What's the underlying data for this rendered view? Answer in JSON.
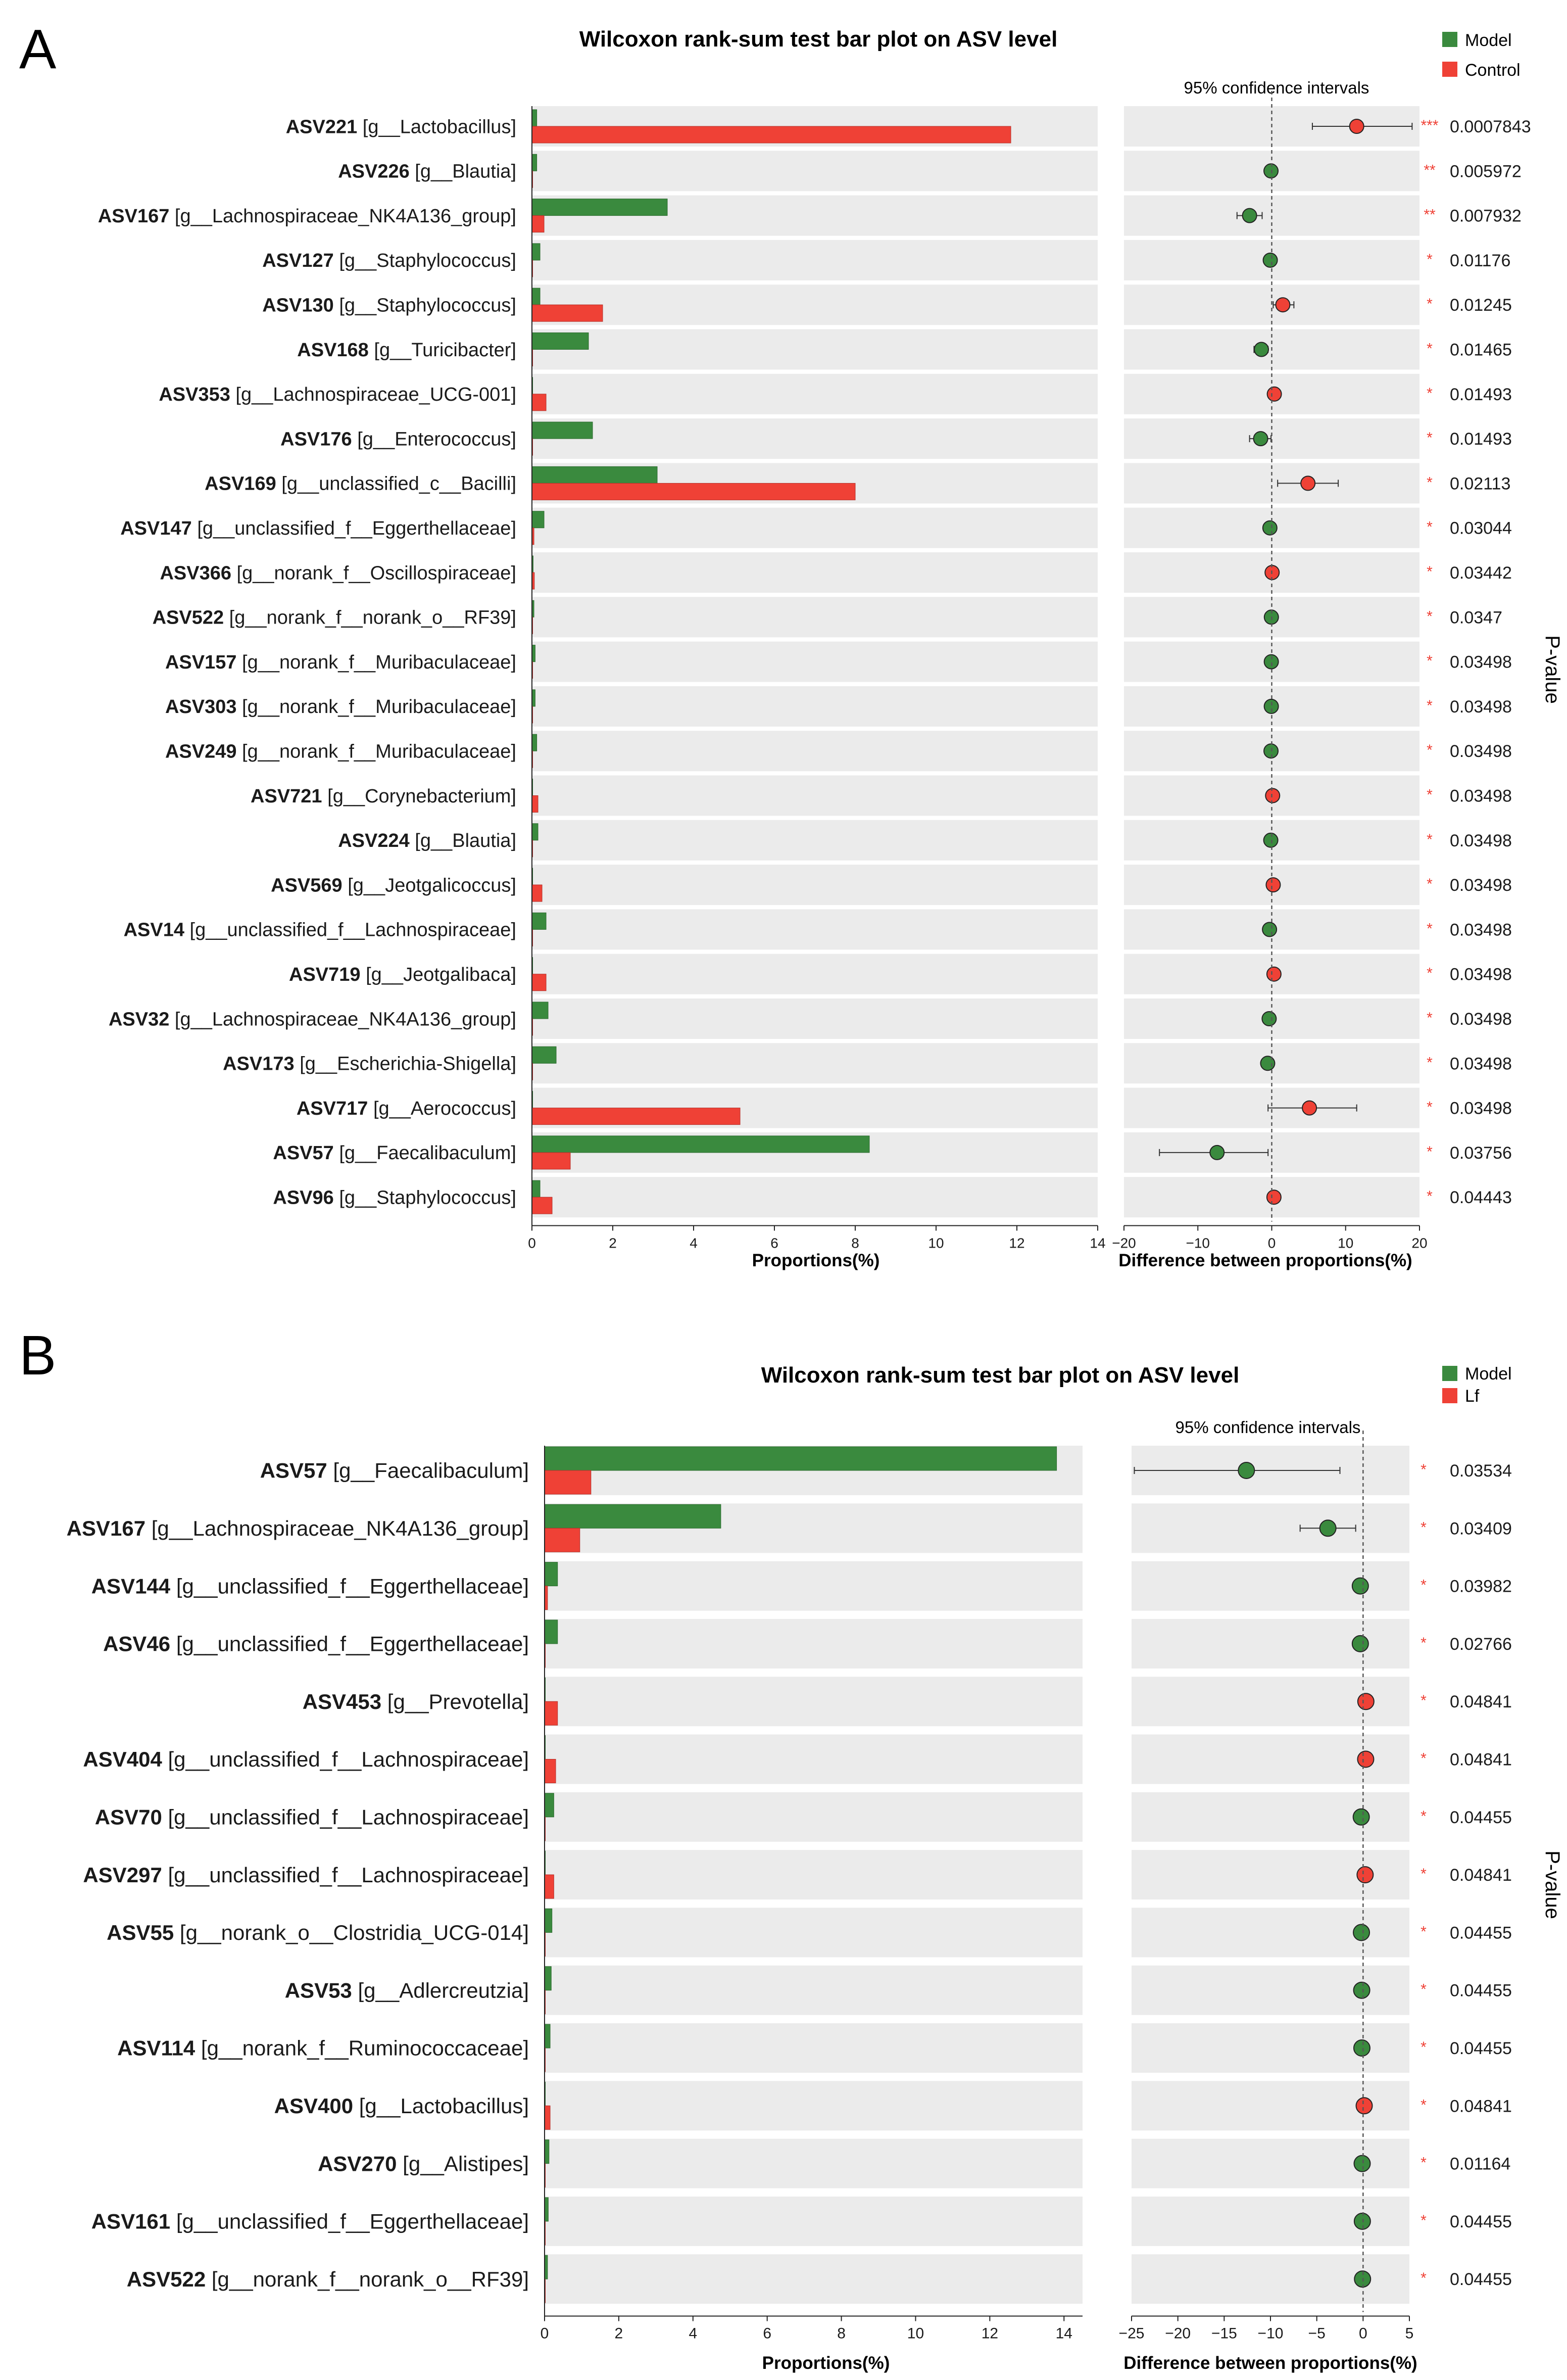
{
  "colors": {
    "model": "#3a8a3e",
    "control": "#ef4136",
    "lf": "#ef4136",
    "panel_bg": "#ebebeb",
    "sig_star": "#ef4136",
    "text": "#1a1a1a"
  },
  "chart_data": [
    {
      "type": "bar",
      "panel_label": "A",
      "title": "Wilcoxon rank-sum test bar plot on ASV level",
      "legend": [
        {
          "name": "Model",
          "color_key": "model"
        },
        {
          "name": "Control",
          "color_key": "control"
        }
      ],
      "ci_title": "95% confidence intervals",
      "xlabel": "Proportions(%)",
      "ci_xlabel": "Difference between proportions(%)",
      "p_axis_label": "P-value",
      "xlim": [
        0,
        14
      ],
      "xticks": [
        0,
        2,
        4,
        6,
        8,
        10,
        12,
        14
      ],
      "ci_xlim": [
        -20,
        20
      ],
      "ci_xticks": [
        -20,
        -10,
        0,
        10,
        20
      ],
      "rows": [
        {
          "asv": "ASV221",
          "taxon": " [g__Lactobacillus]",
          "model": 0.12,
          "other": 11.85,
          "diff": 11.5,
          "lo": 5.5,
          "hi": 19.0,
          "stars": "***",
          "p": "0.0007843"
        },
        {
          "asv": "ASV226",
          "taxon": " [g__Blautia]",
          "model": 0.12,
          "other": 0.0,
          "diff": -0.1,
          "lo": -0.3,
          "hi": 0.1,
          "stars": "**",
          "p": "0.005972"
        },
        {
          "asv": "ASV167",
          "taxon": " [g__Lachnospiraceae_NK4A136_group]",
          "model": 3.35,
          "other": 0.3,
          "diff": -3.0,
          "lo": -4.7,
          "hi": -1.3,
          "stars": "**",
          "p": "0.007932"
        },
        {
          "asv": "ASV127",
          "taxon": " [g__Staphylococcus]",
          "model": 0.2,
          "other": 0.0,
          "diff": -0.2,
          "lo": -0.4,
          "hi": 0.0,
          "stars": "*",
          "p": "0.01176"
        },
        {
          "asv": "ASV130",
          "taxon": " [g__Staphylococcus]",
          "model": 0.2,
          "other": 1.75,
          "diff": 1.5,
          "lo": 0.2,
          "hi": 3.0,
          "stars": "*",
          "p": "0.01245"
        },
        {
          "asv": "ASV168",
          "taxon": " [g__Turicibacter]",
          "model": 1.4,
          "other": 0.0,
          "diff": -1.4,
          "lo": -2.4,
          "hi": -0.5,
          "stars": "*",
          "p": "0.01465"
        },
        {
          "asv": "ASV353",
          "taxon": " [g__Lachnospiraceae_UCG-001]",
          "model": 0.0,
          "other": 0.35,
          "diff": 0.35,
          "lo": 0.1,
          "hi": 0.6,
          "stars": "*",
          "p": "0.01493"
        },
        {
          "asv": "ASV176",
          "taxon": " [g__Enterococcus]",
          "model": 1.5,
          "other": 0.0,
          "diff": -1.5,
          "lo": -3.0,
          "hi": -0.1,
          "stars": "*",
          "p": "0.01493"
        },
        {
          "asv": "ASV169",
          "taxon": " [g__unclassified_c__Bacilli]",
          "model": 3.1,
          "other": 8.0,
          "diff": 4.9,
          "lo": 0.8,
          "hi": 9.0,
          "stars": "*",
          "p": "0.02113"
        },
        {
          "asv": "ASV147",
          "taxon": " [g__unclassified_f__Eggerthellaceae]",
          "model": 0.3,
          "other": 0.05,
          "diff": -0.25,
          "lo": -0.5,
          "hi": 0.0,
          "stars": "*",
          "p": "0.03044"
        },
        {
          "asv": "ASV366",
          "taxon": " [g__norank_f__Oscillospiraceae]",
          "model": 0.03,
          "other": 0.06,
          "diff": 0.05,
          "lo": 0.0,
          "hi": 0.1,
          "stars": "*",
          "p": "0.03442"
        },
        {
          "asv": "ASV522",
          "taxon": " [g__norank_f__norank_o__RF39]",
          "model": 0.05,
          "other": 0.0,
          "diff": -0.05,
          "lo": -0.1,
          "hi": 0.0,
          "stars": "*",
          "p": "0.0347"
        },
        {
          "asv": "ASV157",
          "taxon": " [g__norank_f__Muribaculaceae]",
          "model": 0.08,
          "other": 0.0,
          "diff": -0.06,
          "lo": -0.1,
          "hi": 0.0,
          "stars": "*",
          "p": "0.03498"
        },
        {
          "asv": "ASV303",
          "taxon": " [g__norank_f__Muribaculaceae]",
          "model": 0.08,
          "other": 0.0,
          "diff": -0.06,
          "lo": -0.1,
          "hi": 0.0,
          "stars": "*",
          "p": "0.03498"
        },
        {
          "asv": "ASV249",
          "taxon": " [g__norank_f__Muribaculaceae]",
          "model": 0.12,
          "other": 0.0,
          "diff": -0.1,
          "lo": -0.2,
          "hi": 0.0,
          "stars": "*",
          "p": "0.03498"
        },
        {
          "asv": "ASV721",
          "taxon": " [g__Corynebacterium]",
          "model": 0.0,
          "other": 0.15,
          "diff": 0.12,
          "lo": 0.0,
          "hi": 0.25,
          "stars": "*",
          "p": "0.03498"
        },
        {
          "asv": "ASV224",
          "taxon": " [g__Blautia]",
          "model": 0.15,
          "other": 0.0,
          "diff": -0.13,
          "lo": -0.25,
          "hi": 0.0,
          "stars": "*",
          "p": "0.03498"
        },
        {
          "asv": "ASV569",
          "taxon": " [g__Jeotgalicoccus]",
          "model": 0.0,
          "other": 0.25,
          "diff": 0.2,
          "lo": 0.05,
          "hi": 0.4,
          "stars": "*",
          "p": "0.03498"
        },
        {
          "asv": "ASV14",
          "taxon": " [g__unclassified_f__Lachnospiraceae]",
          "model": 0.35,
          "other": 0.0,
          "diff": -0.3,
          "lo": -0.6,
          "hi": 0.0,
          "stars": "*",
          "p": "0.03498"
        },
        {
          "asv": "ASV719",
          "taxon": " [g__Jeotgalibaca]",
          "model": 0.0,
          "other": 0.35,
          "diff": 0.3,
          "lo": 0.05,
          "hi": 0.6,
          "stars": "*",
          "p": "0.03498"
        },
        {
          "asv": "ASV32",
          "taxon": " [g__Lachnospiraceae_NK4A136_group]",
          "model": 0.4,
          "other": 0.0,
          "diff": -0.35,
          "lo": -0.7,
          "hi": 0.0,
          "stars": "*",
          "p": "0.03498"
        },
        {
          "asv": "ASV173",
          "taxon": " [g__Escherichia-Shigella]",
          "model": 0.6,
          "other": 0.0,
          "diff": -0.55,
          "lo": -1.0,
          "hi": -0.1,
          "stars": "*",
          "p": "0.03498"
        },
        {
          "asv": "ASV717",
          "taxon": " [g__Aerococcus]",
          "model": 0.0,
          "other": 5.15,
          "diff": 5.1,
          "lo": -0.5,
          "hi": 11.5,
          "stars": "*",
          "p": "0.03498"
        },
        {
          "asv": "ASV57",
          "taxon": " [g__Faecalibaculum]",
          "model": 8.35,
          "other": 0.95,
          "diff": -7.4,
          "lo": -15.2,
          "hi": -0.5,
          "stars": "*",
          "p": "0.03756"
        },
        {
          "asv": "ASV96",
          "taxon": " [g__Staphylococcus]",
          "model": 0.2,
          "other": 0.5,
          "diff": 0.3,
          "lo": 0.05,
          "hi": 0.6,
          "stars": "*",
          "p": "0.04443"
        }
      ]
    },
    {
      "type": "bar",
      "panel_label": "B",
      "title": "Wilcoxon rank-sum test bar plot on ASV level",
      "legend": [
        {
          "name": "Model",
          "color_key": "model"
        },
        {
          "name": "Lf",
          "color_key": "lf"
        }
      ],
      "ci_title": "95% confidence intervals",
      "xlabel": "Proportions(%)",
      "ci_xlabel": "Difference between proportions(%)",
      "p_axis_label": "P-value",
      "xlim": [
        0,
        14.5
      ],
      "xticks": [
        0,
        2,
        4,
        6,
        8,
        10,
        12,
        14
      ],
      "ci_xlim": [
        -25,
        5
      ],
      "ci_xticks": [
        -25,
        -20,
        -15,
        -10,
        -5,
        0,
        5
      ],
      "rows": [
        {
          "asv": "ASV57",
          "taxon": " [g__Faecalibaculum]",
          "model": 13.8,
          "other": 1.25,
          "diff": -12.6,
          "lo": -24.7,
          "hi": -2.5,
          "stars": "*",
          "p": "0.03534"
        },
        {
          "asv": "ASV167",
          "taxon": " [g__Lachnospiraceae_NK4A136_group]",
          "model": 4.75,
          "other": 0.95,
          "diff": -3.8,
          "lo": -6.8,
          "hi": -0.8,
          "stars": "*",
          "p": "0.03409"
        },
        {
          "asv": "ASV144",
          "taxon": " [g__unclassified_f__Eggerthellaceae]",
          "model": 0.35,
          "other": 0.08,
          "diff": -0.3,
          "lo": -0.6,
          "hi": 0.0,
          "stars": "*",
          "p": "0.03982"
        },
        {
          "asv": "ASV46",
          "taxon": " [g__unclassified_f__Eggerthellaceae]",
          "model": 0.35,
          "other": 0.0,
          "diff": -0.3,
          "lo": -0.6,
          "hi": 0.0,
          "stars": "*",
          "p": "0.02766"
        },
        {
          "asv": "ASV453",
          "taxon": " [g__Prevotella]",
          "model": 0.0,
          "other": 0.35,
          "diff": 0.3,
          "lo": 0.05,
          "hi": 0.6,
          "stars": "*",
          "p": "0.04841"
        },
        {
          "asv": "ASV404",
          "taxon": " [g__unclassified_f__Lachnospiraceae]",
          "model": 0.0,
          "other": 0.3,
          "diff": 0.28,
          "lo": 0.05,
          "hi": 0.5,
          "stars": "*",
          "p": "0.04841"
        },
        {
          "asv": "ASV70",
          "taxon": " [g__unclassified_f__Lachnospiraceae]",
          "model": 0.25,
          "other": 0.0,
          "diff": -0.2,
          "lo": -0.4,
          "hi": 0.0,
          "stars": "*",
          "p": "0.04455"
        },
        {
          "asv": "ASV297",
          "taxon": " [g__unclassified_f__Lachnospiraceae]",
          "model": 0.0,
          "other": 0.25,
          "diff": 0.22,
          "lo": 0.05,
          "hi": 0.4,
          "stars": "*",
          "p": "0.04841"
        },
        {
          "asv": "ASV55",
          "taxon": " [g__norank_o__Clostridia_UCG-014]",
          "model": 0.2,
          "other": 0.0,
          "diff": -0.18,
          "lo": -0.35,
          "hi": 0.0,
          "stars": "*",
          "p": "0.04455"
        },
        {
          "asv": "ASV53",
          "taxon": " [g__Adlercreutzia]",
          "model": 0.18,
          "other": 0.0,
          "diff": -0.15,
          "lo": -0.3,
          "hi": 0.0,
          "stars": "*",
          "p": "0.04455"
        },
        {
          "asv": "ASV114",
          "taxon": " [g__norank_f__Ruminococcaceae]",
          "model": 0.15,
          "other": 0.0,
          "diff": -0.13,
          "lo": -0.25,
          "hi": 0.0,
          "stars": "*",
          "p": "0.04455"
        },
        {
          "asv": "ASV400",
          "taxon": " [g__Lactobacillus]",
          "model": 0.0,
          "other": 0.15,
          "diff": 0.12,
          "lo": 0.02,
          "hi": 0.25,
          "stars": "*",
          "p": "0.04841"
        },
        {
          "asv": "ASV270",
          "taxon": " [g__Alistipes]",
          "model": 0.12,
          "other": 0.0,
          "diff": -0.1,
          "lo": -0.2,
          "hi": 0.0,
          "stars": "*",
          "p": "0.01164"
        },
        {
          "asv": "ASV161",
          "taxon": " [g__unclassified_f__Eggerthellaceae]",
          "model": 0.1,
          "other": 0.0,
          "diff": -0.08,
          "lo": -0.15,
          "hi": 0.0,
          "stars": "*",
          "p": "0.04455"
        },
        {
          "asv": "ASV522",
          "taxon": " [g__norank_f__norank_o__RF39]",
          "model": 0.08,
          "other": 0.0,
          "diff": -0.06,
          "lo": -0.12,
          "hi": 0.0,
          "stars": "*",
          "p": "0.04455"
        }
      ]
    }
  ]
}
